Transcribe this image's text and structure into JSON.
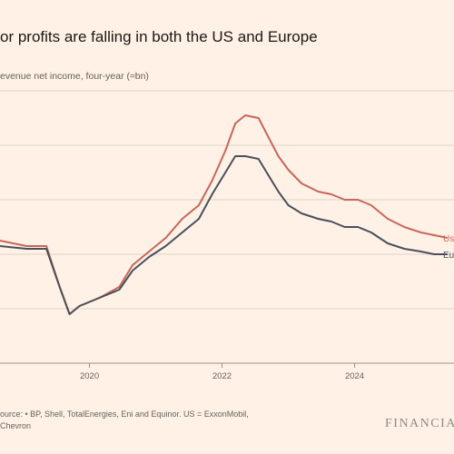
{
  "chart_data": {
    "type": "line",
    "title": "or profits are falling in both the US and Europe",
    "subtitle": "evenue net income, four-year (≈bn)",
    "x_ticks": [
      "2020",
      "2022",
      "2024"
    ],
    "xlim": [
      2019.0,
      2025.85
    ],
    "ylim": [
      0,
      100
    ],
    "grid": true,
    "series": [
      {
        "name": "Us",
        "color": "#c8665a",
        "x": [
          2019.0,
          2019.4,
          2019.7,
          2019.9,
          2020.05,
          2020.2,
          2020.5,
          2020.8,
          2021.0,
          2021.25,
          2021.5,
          2021.75,
          2022.0,
          2022.2,
          2022.4,
          2022.55,
          2022.7,
          2022.9,
          2023.05,
          2023.2,
          2023.35,
          2023.55,
          2023.8,
          2024.0,
          2024.2,
          2024.4,
          2024.6,
          2024.85,
          2025.1,
          2025.35,
          2025.55,
          2025.75
        ],
        "values": [
          25,
          23,
          23,
          8,
          -2,
          1,
          4,
          8,
          16,
          21,
          26,
          33,
          38,
          47,
          58,
          68,
          71,
          70,
          63,
          56,
          51,
          46,
          43,
          42,
          40,
          40,
          38,
          33,
          30,
          28,
          27,
          26
        ]
      },
      {
        "name": "Europe",
        "color": "#4a4f5b",
        "x": [
          2019.0,
          2019.4,
          2019.7,
          2019.9,
          2020.05,
          2020.2,
          2020.5,
          2020.8,
          2021.0,
          2021.25,
          2021.5,
          2021.75,
          2022.0,
          2022.2,
          2022.4,
          2022.55,
          2022.7,
          2022.9,
          2023.05,
          2023.2,
          2023.35,
          2023.55,
          2023.8,
          2024.0,
          2024.2,
          2024.4,
          2024.6,
          2024.85,
          2025.1,
          2025.35,
          2025.55,
          2025.75
        ],
        "values": [
          23,
          22,
          22,
          8,
          -2,
          1,
          4,
          7,
          14,
          19,
          23,
          28,
          33,
          42,
          50,
          56,
          56,
          55,
          49,
          43,
          38,
          35,
          33,
          32,
          30,
          30,
          28,
          24,
          22,
          21,
          20,
          20
        ]
      }
    ],
    "end_labels": [
      "Us",
      "Eu"
    ]
  },
  "source": {
    "line1": "ource: • BP, Shell, TotalEnergies, Eni and Equinor. US = ExxonMobil,",
    "line2": "Chevron"
  },
  "logo": "FINANCIA"
}
